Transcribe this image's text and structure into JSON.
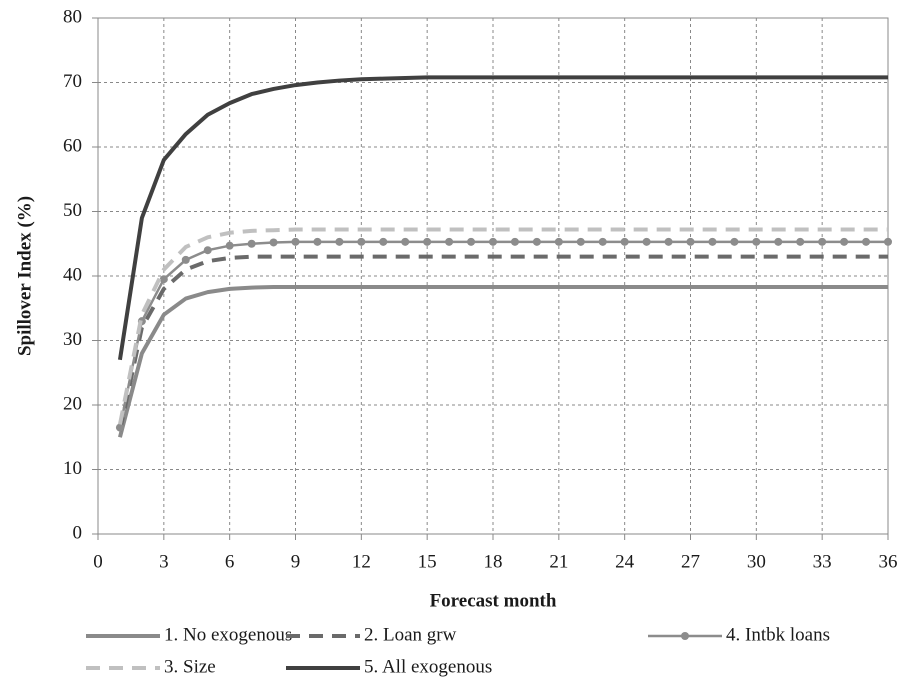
{
  "chart_data": {
    "type": "line",
    "x_label": "Forecast month",
    "y_label": "Spillover Index (%)",
    "x": [
      1,
      2,
      3,
      4,
      5,
      6,
      7,
      8,
      9,
      10,
      11,
      12,
      13,
      14,
      15,
      16,
      17,
      18,
      19,
      20,
      21,
      22,
      23,
      24,
      25,
      26,
      27,
      28,
      29,
      30,
      31,
      32,
      33,
      34,
      35,
      36
    ],
    "xlim": [
      0,
      36
    ],
    "xticks": [
      0,
      3,
      6,
      9,
      12,
      15,
      18,
      21,
      24,
      27,
      30,
      33,
      36
    ],
    "ylim": [
      0,
      80
    ],
    "yticks": [
      0,
      10,
      20,
      30,
      40,
      50,
      60,
      70,
      80
    ],
    "grid": true,
    "legend": "bottom",
    "series": [
      {
        "name": "1. No exogenous",
        "color": "#8a8a8a",
        "linestyle": "solid",
        "values": [
          15,
          28,
          34,
          36.5,
          37.5,
          38,
          38.2,
          38.3,
          38.3,
          38.3,
          38.3,
          38.3,
          38.3,
          38.3,
          38.3,
          38.3,
          38.3,
          38.3,
          38.3,
          38.3,
          38.3,
          38.3,
          38.3,
          38.3,
          38.3,
          38.3,
          38.3,
          38.3,
          38.3,
          38.3,
          38.3,
          38.3,
          38.3,
          38.3,
          38.3,
          38.3
        ]
      },
      {
        "name": "2. Loan grw",
        "color": "#6a6a6a",
        "linestyle": "dashed",
        "values": [
          16,
          32,
          38,
          41,
          42.3,
          42.8,
          43,
          43,
          43,
          43,
          43,
          43,
          43,
          43,
          43,
          43,
          43,
          43,
          43,
          43,
          43,
          43,
          43,
          43,
          43,
          43,
          43,
          43,
          43,
          43,
          43,
          43,
          43,
          43,
          43,
          43
        ]
      },
      {
        "name": "4. Intbk loans",
        "color": "#8c8c8c",
        "linestyle": "solid",
        "marker": "circle",
        "values": [
          16.5,
          33,
          39.5,
          42.5,
          44,
          44.7,
          45,
          45.2,
          45.3,
          45.3,
          45.3,
          45.3,
          45.3,
          45.3,
          45.3,
          45.3,
          45.3,
          45.3,
          45.3,
          45.3,
          45.3,
          45.3,
          45.3,
          45.3,
          45.3,
          45.3,
          45.3,
          45.3,
          45.3,
          45.3,
          45.3,
          45.3,
          45.3,
          45.3,
          45.3,
          45.3
        ]
      },
      {
        "name": "3. Size",
        "color": "#c0c0c0",
        "linestyle": "dashed",
        "values": [
          17,
          34,
          41,
          44.5,
          46,
          46.7,
          47,
          47.1,
          47.2,
          47.2,
          47.2,
          47.2,
          47.2,
          47.2,
          47.2,
          47.2,
          47.2,
          47.2,
          47.2,
          47.2,
          47.2,
          47.2,
          47.2,
          47.2,
          47.2,
          47.2,
          47.2,
          47.2,
          47.2,
          47.2,
          47.2,
          47.2,
          47.2,
          47.2,
          47.2,
          47.2
        ]
      },
      {
        "name": "5. All exogenous",
        "color": "#404040",
        "linestyle": "solid",
        "values": [
          27,
          49,
          58,
          62,
          65,
          66.8,
          68.2,
          69,
          69.6,
          70,
          70.3,
          70.5,
          70.6,
          70.7,
          70.8,
          70.8,
          70.8,
          70.8,
          70.8,
          70.8,
          70.8,
          70.8,
          70.8,
          70.8,
          70.8,
          70.8,
          70.8,
          70.8,
          70.8,
          70.8,
          70.8,
          70.8,
          70.8,
          70.8,
          70.8,
          70.8
        ]
      }
    ]
  }
}
